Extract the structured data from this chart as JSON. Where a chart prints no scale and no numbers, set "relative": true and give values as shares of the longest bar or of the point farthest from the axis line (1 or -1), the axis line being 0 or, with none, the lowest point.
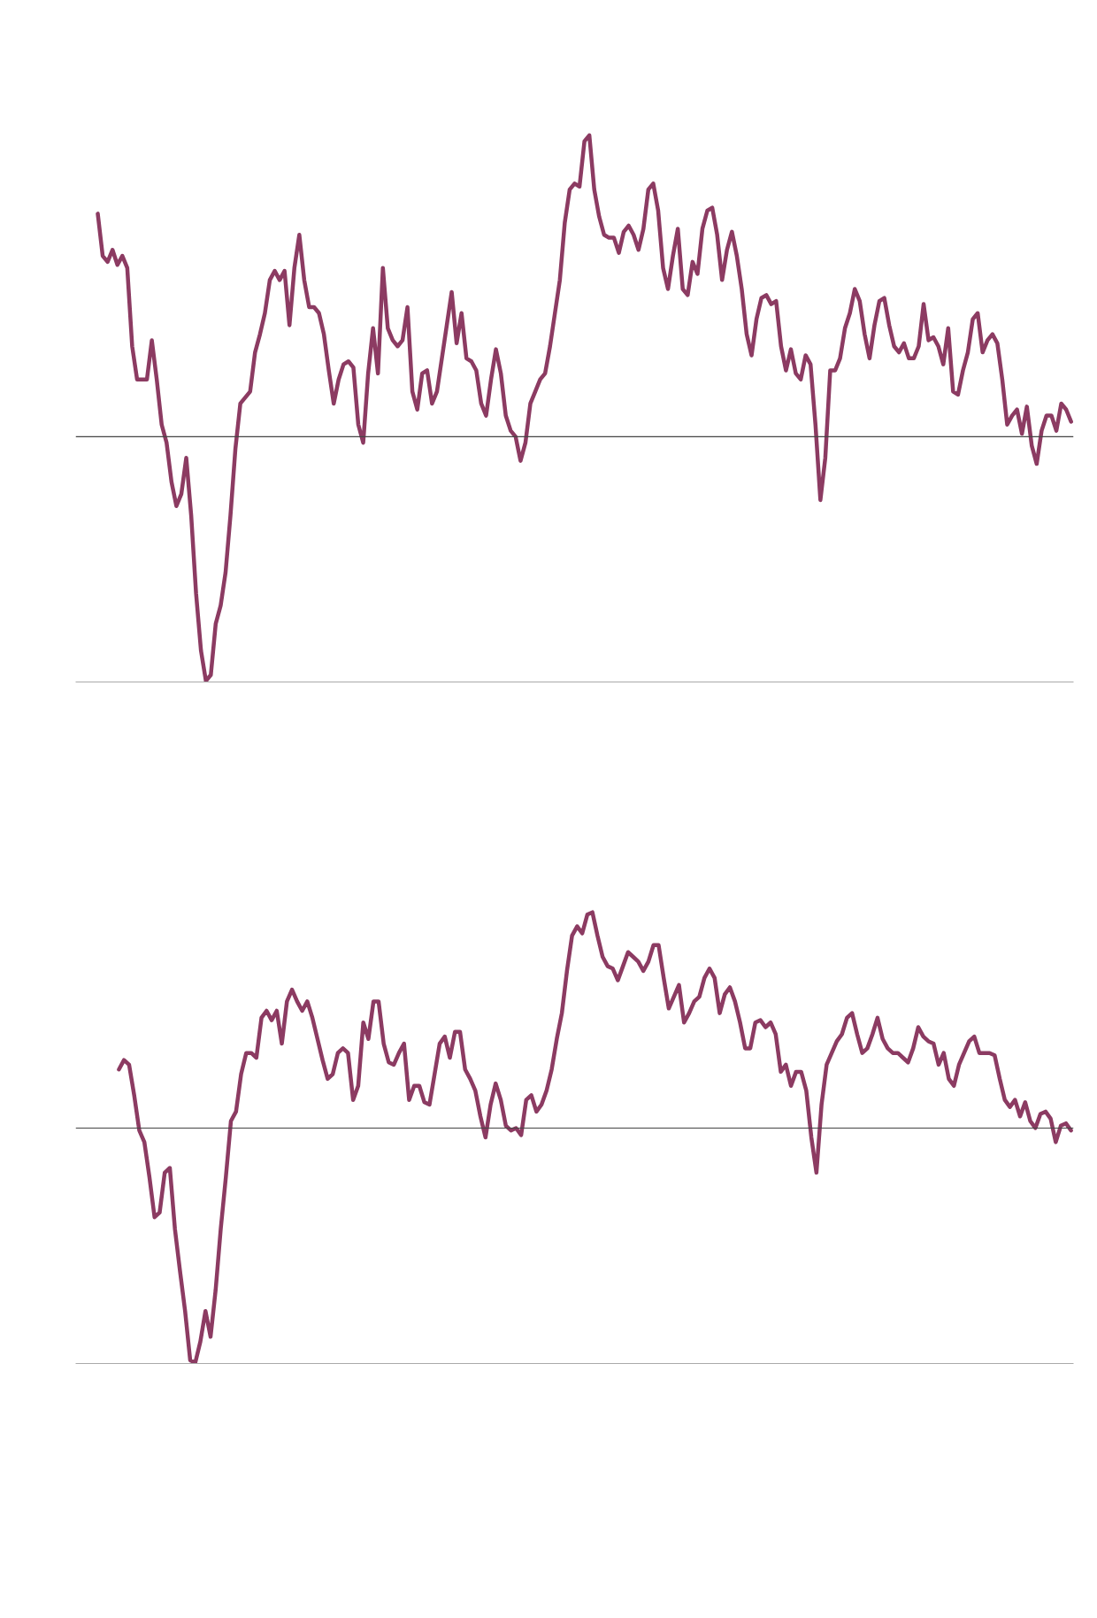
{
  "chart_data": [
    {
      "type": "line",
      "relative": true,
      "grid": false,
      "marker": "none",
      "line_style": "solid",
      "categories": [
        null,
        null,
        null,
        null,
        null,
        null,
        null,
        null,
        null,
        null,
        null,
        null,
        null,
        null,
        null,
        null,
        null,
        null,
        null,
        null,
        null,
        null,
        null,
        null,
        null,
        null,
        null,
        null,
        null,
        null,
        null,
        null,
        null,
        null,
        null,
        null,
        null,
        null,
        null,
        null,
        null,
        null,
        null,
        null,
        null,
        null,
        null,
        null,
        null,
        null,
        null,
        null,
        null,
        null,
        null,
        null,
        null,
        null,
        null,
        null,
        null,
        null,
        null,
        null,
        null,
        null,
        null,
        null,
        null,
        null,
        null,
        null,
        null,
        null,
        null,
        null,
        null,
        null,
        null,
        null,
        null,
        null,
        null,
        null,
        null,
        null,
        null,
        null,
        null,
        null,
        null,
        null,
        null,
        null,
        null,
        null,
        null,
        null,
        null,
        null,
        null,
        null,
        null,
        null,
        null,
        null,
        null,
        null,
        null,
        null,
        null,
        null,
        null,
        null,
        null,
        null,
        null,
        null,
        null,
        null,
        null,
        null,
        null,
        null,
        null,
        null,
        null,
        null,
        null,
        null,
        null,
        null,
        null,
        null,
        null,
        null,
        null,
        null,
        null,
        null,
        null,
        null,
        null,
        null,
        null,
        null,
        null,
        null,
        null,
        null,
        null,
        null,
        null,
        null,
        null,
        null,
        null,
        null,
        null,
        null,
        null,
        null,
        null,
        null,
        null,
        null,
        null,
        null,
        null,
        null,
        null,
        null,
        null,
        null,
        null,
        null,
        null,
        null,
        null,
        null,
        null,
        null,
        null,
        null,
        null,
        null,
        null,
        null,
        null,
        null,
        null,
        null,
        null,
        null,
        null,
        null,
        null,
        null,
        null
      ],
      "series": [
        {
          "color": "#8c3b62",
          "values": [
            0.74,
            0.6,
            0.58,
            0.62,
            0.57,
            0.6,
            0.56,
            0.3,
            0.19,
            0.19,
            0.19,
            0.32,
            0.19,
            0.04,
            -0.02,
            -0.15,
            -0.23,
            -0.19,
            -0.07,
            -0.26,
            -0.52,
            -0.71,
            -0.81,
            -0.79,
            -0.62,
            -0.56,
            -0.45,
            -0.26,
            -0.04,
            0.11,
            0.13,
            0.15,
            0.28,
            0.34,
            0.41,
            0.52,
            0.55,
            0.52,
            0.55,
            0.37,
            0.56,
            0.67,
            0.52,
            0.43,
            0.43,
            0.41,
            0.34,
            0.22,
            0.11,
            0.19,
            0.24,
            0.25,
            0.23,
            0.04,
            -0.02,
            0.21,
            0.36,
            0.21,
            0.56,
            0.36,
            0.32,
            0.3,
            0.32,
            0.43,
            0.15,
            0.09,
            0.21,
            0.22,
            0.11,
            0.15,
            0.26,
            0.37,
            0.48,
            0.31,
            0.41,
            0.26,
            0.25,
            0.22,
            0.11,
            0.07,
            0.19,
            0.29,
            0.21,
            0.07,
            0.02,
            0,
            -0.08,
            -0.02,
            0.11,
            0.15,
            0.19,
            0.21,
            0.3,
            0.41,
            0.52,
            0.71,
            0.82,
            0.84,
            0.83,
            0.98,
            1.0,
            0.82,
            0.73,
            0.67,
            0.66,
            0.66,
            0.61,
            0.68,
            0.7,
            0.67,
            0.62,
            0.69,
            0.82,
            0.84,
            0.75,
            0.56,
            0.49,
            0.6,
            0.69,
            0.49,
            0.47,
            0.58,
            0.54,
            0.69,
            0.75,
            0.76,
            0.67,
            0.52,
            0.62,
            0.68,
            0.6,
            0.49,
            0.34,
            0.27,
            0.39,
            0.46,
            0.47,
            0.44,
            0.45,
            0.3,
            0.22,
            0.29,
            0.21,
            0.19,
            0.27,
            0.24,
            0.04,
            -0.21,
            -0.07,
            0.22,
            0.22,
            0.26,
            0.36,
            0.41,
            0.49,
            0.45,
            0.34,
            0.26,
            0.37,
            0.45,
            0.46,
            0.37,
            0.3,
            0.28,
            0.31,
            0.26,
            0.26,
            0.3,
            0.44,
            0.32,
            0.33,
            0.3,
            0.24,
            0.36,
            0.15,
            0.14,
            0.22,
            0.28,
            0.39,
            0.41,
            0.28,
            0.32,
            0.34,
            0.31,
            0.19,
            0.04,
            0.07,
            0.09,
            0.01,
            0.1,
            -0.03,
            -0.09,
            0.02,
            0.07,
            0.07,
            0.02,
            0.11,
            0.09,
            0.05
          ]
        }
      ]
    },
    {
      "type": "line",
      "relative": true,
      "grid": false,
      "marker": "none",
      "line_style": "solid",
      "categories": [
        null,
        null,
        null,
        null,
        null,
        null,
        null,
        null,
        null,
        null,
        null,
        null,
        null,
        null,
        null,
        null,
        null,
        null,
        null,
        null,
        null,
        null,
        null,
        null,
        null,
        null,
        null,
        null,
        null,
        null,
        null,
        null,
        null,
        null,
        null,
        null,
        null,
        null,
        null,
        null,
        null,
        null,
        null,
        null,
        null,
        null,
        null,
        null,
        null,
        null,
        null,
        null,
        null,
        null,
        null,
        null,
        null,
        null,
        null,
        null,
        null,
        null,
        null,
        null,
        null,
        null,
        null,
        null,
        null,
        null,
        null,
        null,
        null,
        null,
        null,
        null,
        null,
        null,
        null,
        null,
        null,
        null,
        null,
        null,
        null,
        null,
        null,
        null,
        null,
        null,
        null,
        null,
        null,
        null,
        null,
        null,
        null,
        null,
        null,
        null,
        null,
        null,
        null,
        null,
        null,
        null,
        null,
        null,
        null,
        null,
        null,
        null,
        null,
        null,
        null,
        null,
        null,
        null,
        null,
        null,
        null,
        null,
        null,
        null,
        null,
        null,
        null,
        null,
        null,
        null,
        null,
        null,
        null,
        null,
        null,
        null,
        null,
        null,
        null,
        null,
        null,
        null,
        null,
        null,
        null,
        null,
        null,
        null,
        null,
        null,
        null,
        null,
        null,
        null,
        null,
        null,
        null,
        null,
        null,
        null,
        null,
        null,
        null,
        null,
        null,
        null,
        null,
        null,
        null,
        null,
        null,
        null,
        null,
        null,
        null,
        null,
        null,
        null,
        null,
        null,
        null,
        null,
        null,
        null,
        null,
        null,
        null,
        null
      ],
      "series": [
        {
          "color": "#8c3b62",
          "values": [
            0.25,
            0.29,
            0.27,
            0.14,
            -0.01,
            -0.06,
            -0.21,
            -0.38,
            -0.36,
            -0.19,
            -0.17,
            -0.43,
            -0.61,
            -0.78,
            -0.99,
            -1.0,
            -0.91,
            -0.78,
            -0.89,
            -0.69,
            -0.43,
            -0.21,
            0.03,
            0.07,
            0.23,
            0.32,
            0.32,
            0.3,
            0.47,
            0.5,
            0.46,
            0.5,
            0.36,
            0.54,
            0.59,
            0.54,
            0.5,
            0.54,
            0.47,
            0.38,
            0.29,
            0.21,
            0.23,
            0.32,
            0.34,
            0.32,
            0.12,
            0.18,
            0.45,
            0.38,
            0.54,
            0.54,
            0.36,
            0.28,
            0.27,
            0.32,
            0.36,
            0.12,
            0.18,
            0.18,
            0.11,
            0.1,
            0.23,
            0.36,
            0.39,
            0.3,
            0.41,
            0.41,
            0.25,
            0.21,
            0.16,
            0.05,
            -0.04,
            0.1,
            0.19,
            0.12,
            0.01,
            -0.01,
            0,
            -0.03,
            0.12,
            0.14,
            0.07,
            0.1,
            0.16,
            0.25,
            0.38,
            0.49,
            0.67,
            0.82,
            0.86,
            0.83,
            0.91,
            0.92,
            0.82,
            0.73,
            0.69,
            0.68,
            0.63,
            0.69,
            0.75,
            0.73,
            0.71,
            0.67,
            0.71,
            0.78,
            0.78,
            0.64,
            0.51,
            0.56,
            0.61,
            0.45,
            0.49,
            0.54,
            0.56,
            0.64,
            0.68,
            0.64,
            0.49,
            0.57,
            0.6,
            0.54,
            0.45,
            0.34,
            0.34,
            0.45,
            0.46,
            0.43,
            0.45,
            0.4,
            0.24,
            0.27,
            0.18,
            0.24,
            0.24,
            0.16,
            -0.04,
            -0.19,
            0.1,
            0.27,
            0.32,
            0.37,
            0.4,
            0.47,
            0.49,
            0.4,
            0.32,
            0.34,
            0.4,
            0.47,
            0.38,
            0.34,
            0.32,
            0.32,
            0.3,
            0.28,
            0.34,
            0.43,
            0.39,
            0.37,
            0.36,
            0.27,
            0.32,
            0.21,
            0.18,
            0.27,
            0.32,
            0.37,
            0.39,
            0.32,
            0.32,
            0.32,
            0.31,
            0.21,
            0.12,
            0.09,
            0.12,
            0.05,
            0.11,
            0.03,
            0,
            0.06,
            0.07,
            0.04,
            -0.06,
            0.01,
            0.02,
            -0.01
          ]
        }
      ]
    }
  ]
}
